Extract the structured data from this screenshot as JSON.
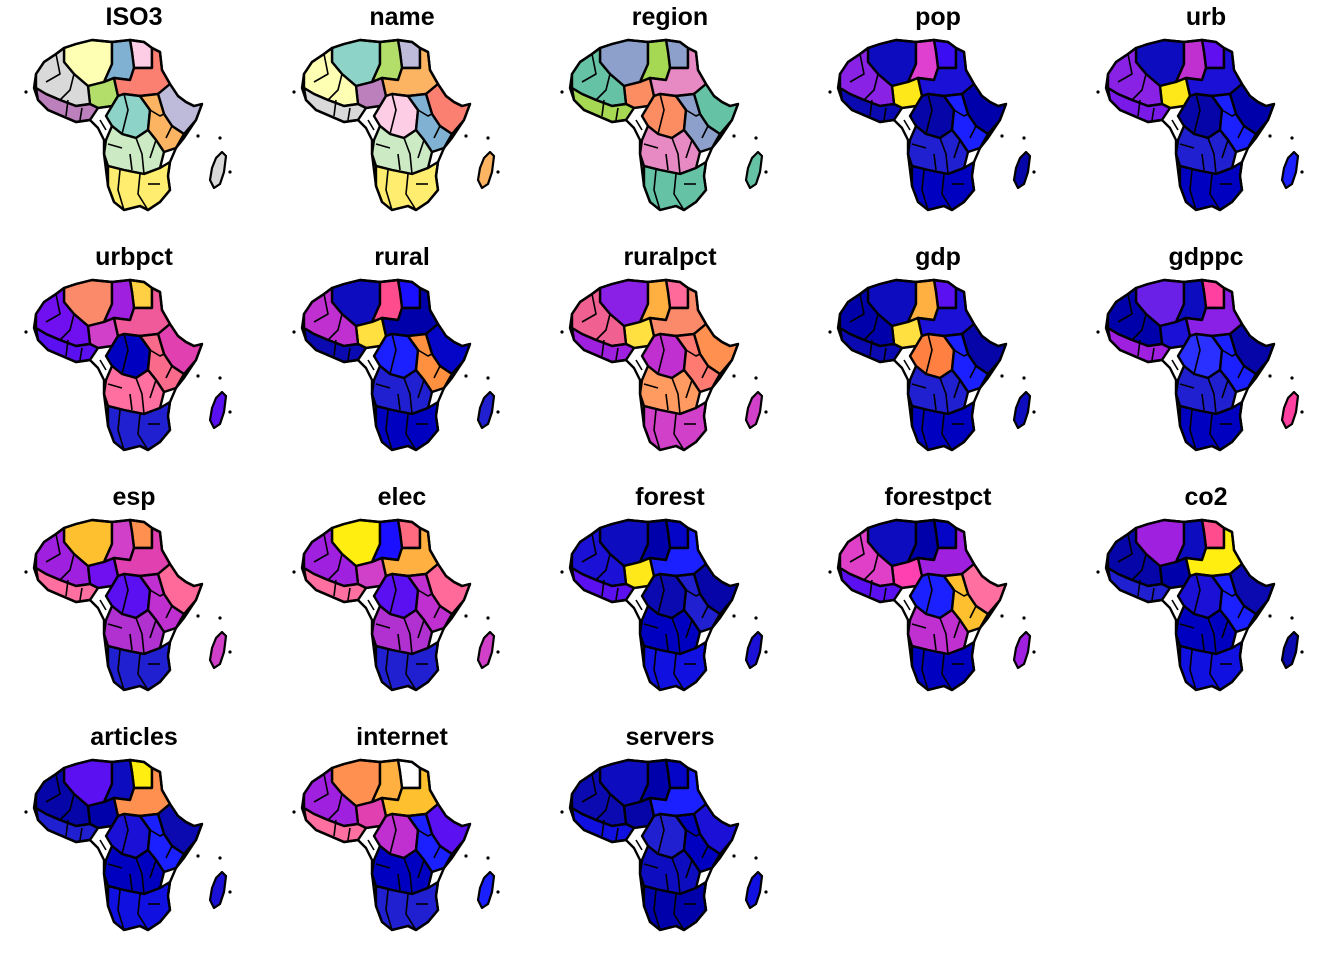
{
  "figure": {
    "panels": [
      {
        "title": "ISO3",
        "palette": "categorical",
        "fills": [
          "#ffffb3",
          "#fccde5",
          "#80b1d3",
          "#b3de69",
          "#d9d9d9",
          "#fb8072",
          "#bebada",
          "#8dd3c7",
          "#fdb462",
          "#bc80bd",
          "#ccebc5",
          "#ffed6f"
        ]
      },
      {
        "title": "name",
        "palette": "categorical",
        "fills": [
          "#8dd3c7",
          "#bebada",
          "#b3de69",
          "#bc80bd",
          "#ffffb3",
          "#fdb462",
          "#fb8072",
          "#fccde5",
          "#80b1d3",
          "#d9d9d9",
          "#ccebc5",
          "#ffed6f"
        ]
      },
      {
        "title": "region",
        "palette": "categorical",
        "fills": [
          "#8da0cb",
          "#8da0cb",
          "#a6d854",
          "#fc8d62",
          "#66c2a5",
          "#e78ac3",
          "#66c2a5",
          "#fc8d62",
          "#8da0cb",
          "#a6d854",
          "#e78ac3",
          "#66c2a5"
        ]
      },
      {
        "title": "pop",
        "palette": "sequential",
        "fills": [
          "#0d0dbf",
          "#3a0df2",
          "#e040d0",
          "#ffe81a",
          "#8a22e6",
          "#1a10d6",
          "#0000aa",
          "#0505a8",
          "#1a20ff",
          "#0a0ab0",
          "#2020d0",
          "#0000c0"
        ]
      },
      {
        "title": "urb",
        "palette": "sequential",
        "fills": [
          "#0d0dbf",
          "#6010f0",
          "#c030d0",
          "#ffe81a",
          "#8a22e6",
          "#1a10d6",
          "#0000aa",
          "#0505a8",
          "#1a20ff",
          "#7a1ae8",
          "#2020d0",
          "#0000c0"
        ]
      },
      {
        "title": "urbpct",
        "palette": "sequential",
        "fills": [
          "#fa8a6a",
          "#ffd044",
          "#a020e0",
          "#d040c8",
          "#7010f0",
          "#f05a9a",
          "#e040b0",
          "#0000c0",
          "#fa6a8a",
          "#5a10f0",
          "#ff70a0",
          "#2020d0"
        ]
      },
      {
        "title": "rural",
        "palette": "sequential",
        "fills": [
          "#0d0dbf",
          "#1a10ff",
          "#ff4c8c",
          "#ffe040",
          "#c030d0",
          "#0000aa",
          "#0505c8",
          "#1a20ff",
          "#ff9040",
          "#0a0ab0",
          "#2020d0",
          "#0000c0"
        ]
      },
      {
        "title": "ruralpct",
        "palette": "sequential",
        "fills": [
          "#8a20e6",
          "#ff6a9a",
          "#ffb040",
          "#ffe040",
          "#f06090",
          "#fa8a6a",
          "#ff9050",
          "#c030d0",
          "#ff7a70",
          "#a020e0",
          "#ff9a60",
          "#d040c8"
        ]
      },
      {
        "title": "gdp",
        "palette": "sequential",
        "fills": [
          "#0d0dbf",
          "#5a10f0",
          "#ffb040",
          "#ffe040",
          "#0000aa",
          "#1a10d6",
          "#0505a8",
          "#ff8040",
          "#1a20ff",
          "#0a0ab0",
          "#2020d0",
          "#0000c0"
        ]
      },
      {
        "title": "gdppc",
        "palette": "sequential",
        "fills": [
          "#6a20e6",
          "#ff40a0",
          "#0d0dbf",
          "#1a10d6",
          "#0000aa",
          "#8a20e6",
          "#0505a8",
          "#2a30ff",
          "#1a20ff",
          "#a020e0",
          "#2020d0",
          "#0000c0"
        ]
      },
      {
        "title": "esp",
        "palette": "sequential",
        "fills": [
          "#ffc030",
          "#ff9050",
          "#d040c8",
          "#7010f0",
          "#a020e0",
          "#e040b0",
          "#ff6a9a",
          "#5a10f0",
          "#c030d0",
          "#ff70a0",
          "#b030d0",
          "#2020d0"
        ]
      },
      {
        "title": "elec",
        "palette": "sequential",
        "fills": [
          "#ffee10",
          "#ff6a80",
          "#1a10ff",
          "#d040c8",
          "#a020e0",
          "#ffb040",
          "#ff6a9a",
          "#5a10f0",
          "#c030d0",
          "#ff70a0",
          "#b030d0",
          "#2020d0"
        ]
      },
      {
        "title": "forest",
        "palette": "sequential",
        "fills": [
          "#0d0dbf",
          "#0505c8",
          "#0000aa",
          "#ffe81a",
          "#1a10d6",
          "#1a20ff",
          "#0505a8",
          "#0a0ab0",
          "#2020d0",
          "#5a10f0",
          "#0000c0",
          "#1010e0"
        ]
      },
      {
        "title": "forestpct",
        "palette": "sequential",
        "fills": [
          "#0d0dbf",
          "#0505c8",
          "#0000aa",
          "#ff40b0",
          "#e040c8",
          "#a020e0",
          "#ff70a0",
          "#1a20ff",
          "#ffc030",
          "#5a10f0",
          "#c030d0",
          "#0000c0"
        ]
      },
      {
        "title": "co2",
        "palette": "sequential",
        "fills": [
          "#a020e0",
          "#ff4c8c",
          "#0d0dbf",
          "#0000aa",
          "#0505a8",
          "#ffee10",
          "#0a0ab0",
          "#1a10d6",
          "#1a20ff",
          "#2020d0",
          "#0000c0",
          "#1010e0"
        ]
      },
      {
        "title": "articles",
        "palette": "sequential",
        "fills": [
          "#5a10f0",
          "#ffee10",
          "#0d0dbf",
          "#0000aa",
          "#0505a8",
          "#ff9050",
          "#0a0ab0",
          "#1a10d6",
          "#1a20ff",
          "#2020d0",
          "#0000c0",
          "#1010e0"
        ]
      },
      {
        "title": "internet",
        "palette": "sequential",
        "fills": [
          "#ff9050",
          "#ffffff",
          "#ffb040",
          "#e040b0",
          "#a020e0",
          "#ffc030",
          "#5a10f0",
          "#c030d0",
          "#1a20ff",
          "#ff70a0",
          "#0000c0",
          "#2020d0"
        ]
      },
      {
        "title": "servers",
        "palette": "sequential",
        "fills": [
          "#0d0dbf",
          "#0505c8",
          "#0000aa",
          "#0505a8",
          "#0a0ab0",
          "#1a20ff",
          "#1a10d6",
          "#2020d0",
          "#0000c0",
          "#1010e0",
          "#0d0dbf",
          "#0000aa"
        ]
      }
    ]
  }
}
